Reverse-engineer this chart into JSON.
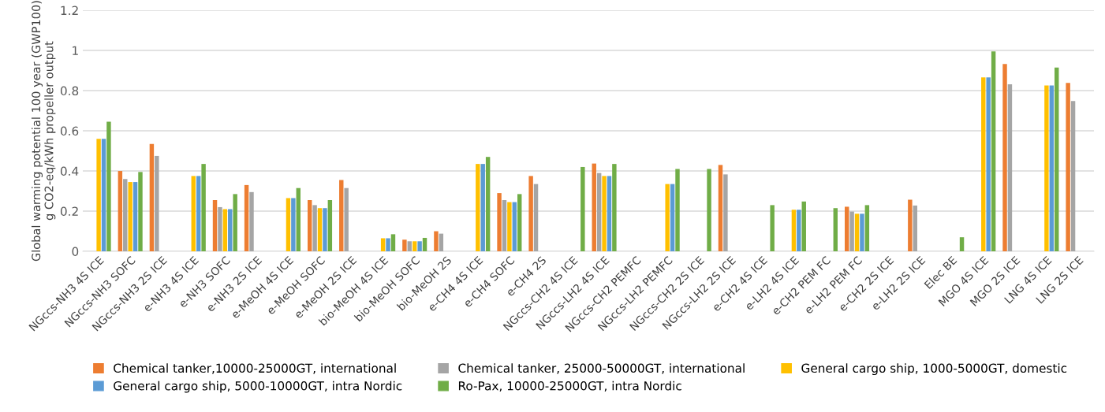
{
  "chart_data": {
    "type": "bar",
    "ylabel": "Global warming potential 100 year (GWP100)\ng CO2-eq/kWh propeller output",
    "categories": [
      "NGccs-NH3 4S ICE",
      "NGccs-NH3 SOFC",
      "NGccs-NH3 2S ICE",
      "e-NH3 4S ICE",
      "e-NH3 SOFC",
      "e-NH3 2S ICE",
      "e-MeOH 4S ICE",
      "e-MeOH SOFC",
      "e-MeOH 2S ICE",
      "bio-MeOH 4S ICE",
      "bio-MeOH SOFC",
      "bio-MeOH 2S",
      "e-CH4 4S ICE",
      "e-CH4 SOFC",
      "e-CH4 2S",
      "NGccs-CH2 4S ICE",
      "NGccs-LH2 4S ICE",
      "NGccs-CH2 PEMFC",
      "NGccs-LH2 PEMFC",
      "NGccs-CH2 2S ICE",
      "NGccs-LH2 2S ICE",
      "e-CH2 4S ICE",
      "e-LH2 4S ICE",
      "e-CH2 PEM FC",
      "e-LH2 PEM FC",
      "e-CH2 2S ICE",
      "e-LH2 2S ICE",
      "Elec BE",
      "MGO 4S ICE",
      "MGO 2S ICE",
      "LNG 4S ICE",
      "LNG 2S ICE"
    ],
    "series": [
      {
        "name": "Chemical tanker,10000-25000GT, international",
        "color": "#ed7d31",
        "values": [
          null,
          0.4,
          0.535,
          null,
          0.255,
          0.33,
          null,
          0.255,
          0.355,
          null,
          0.058,
          0.1,
          null,
          0.29,
          0.375,
          null,
          0.437,
          null,
          null,
          null,
          0.43,
          null,
          null,
          null,
          0.222,
          null,
          0.257,
          null,
          null,
          0.933,
          null,
          0.838
        ]
      },
      {
        "name": "Chemical tanker, 25000-50000GT, international",
        "color": "#a5a5a5",
        "values": [
          null,
          0.36,
          0.475,
          null,
          0.22,
          0.295,
          null,
          0.23,
          0.315,
          null,
          0.05,
          0.088,
          null,
          0.255,
          0.335,
          null,
          0.39,
          null,
          null,
          null,
          0.383,
          null,
          null,
          null,
          0.198,
          null,
          0.228,
          null,
          null,
          0.832,
          null,
          0.748
        ]
      },
      {
        "name": "General cargo ship, 1000-5000GT, domestic",
        "color": "#ffc000",
        "values": [
          0.56,
          0.345,
          null,
          0.375,
          0.21,
          null,
          0.265,
          0.215,
          null,
          0.065,
          0.05,
          null,
          0.435,
          0.245,
          null,
          null,
          0.375,
          null,
          0.335,
          null,
          null,
          null,
          0.207,
          null,
          0.187,
          null,
          null,
          null,
          0.866,
          null,
          0.826,
          null
        ]
      },
      {
        "name": "General cargo ship, 5000-10000GT, intra Nordic",
        "color": "#5b9bd5",
        "values": [
          0.56,
          0.345,
          null,
          0.375,
          0.21,
          null,
          0.265,
          0.215,
          null,
          0.065,
          0.05,
          null,
          0.435,
          0.245,
          null,
          null,
          0.375,
          null,
          0.335,
          null,
          null,
          null,
          0.207,
          null,
          0.187,
          null,
          null,
          null,
          0.866,
          null,
          0.826,
          null
        ]
      },
      {
        "name": "Ro-Pax, 10000-25000GT, intra Nordic",
        "color": "#70ad47",
        "values": [
          0.645,
          0.395,
          null,
          0.435,
          0.285,
          null,
          0.315,
          0.255,
          null,
          0.085,
          0.067,
          null,
          0.47,
          0.285,
          null,
          0.42,
          0.435,
          null,
          0.41,
          0.41,
          null,
          0.23,
          0.248,
          0.215,
          0.23,
          null,
          null,
          0.07,
          0.995,
          null,
          0.915,
          null
        ]
      }
    ],
    "ylim": [
      0,
      1.2
    ],
    "yticks": [
      0,
      {
        "value": 0.2,
        "label": "0.2"
      },
      {
        "value": 0.4,
        "label": "0.4"
      },
      {
        "value": 0.6,
        "label": "0.6"
      },
      {
        "value": 0.8,
        "label": "0.8"
      },
      1,
      {
        "value": 1.2,
        "label": "1.2"
      }
    ],
    "grid": "y",
    "legend": "bottom"
  }
}
